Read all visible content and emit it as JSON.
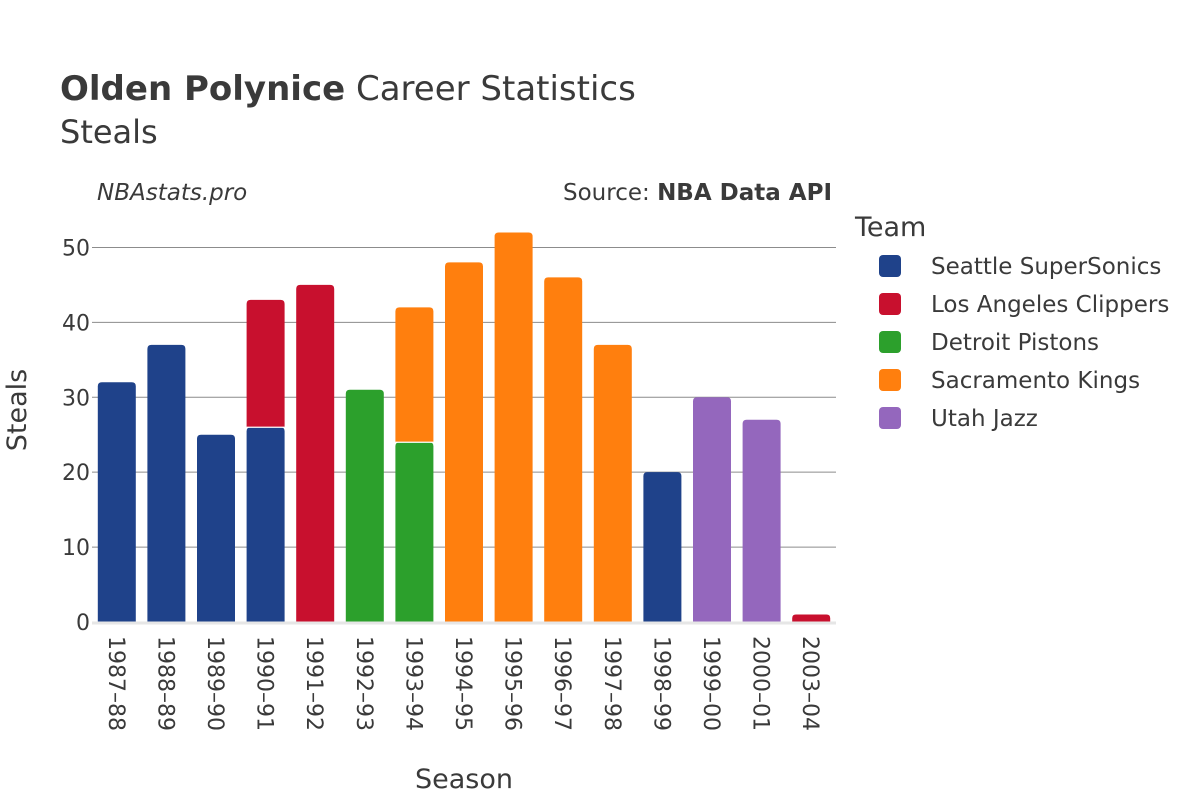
{
  "chart_data": {
    "type": "bar",
    "stacked": true,
    "title_bold": "Olden Polynice",
    "title_rest": " Career Statistics",
    "subtitle": "Steals",
    "watermark": "NBAstats.pro",
    "source_prefix": "Source: ",
    "source_name": "NBA Data API",
    "xlabel": "Season",
    "ylabel": "Steals",
    "ylim": [
      0,
      55
    ],
    "yticks": [
      0,
      10,
      20,
      30,
      40,
      50
    ],
    "grid": true,
    "legend": {
      "title": "Team",
      "placement": "right"
    },
    "categories": [
      "1987–88",
      "1988–89",
      "1989–90",
      "1990–91",
      "1991–92",
      "1992–93",
      "1993–94",
      "1994–95",
      "1995–96",
      "1996–97",
      "1997–98",
      "1998–99",
      "1999–00",
      "2000–01",
      "2003–04"
    ],
    "series": [
      {
        "name": "Seattle SuperSonics",
        "color": "#1f428a",
        "values": [
          32,
          37,
          25,
          26,
          0,
          0,
          0,
          0,
          0,
          0,
          0,
          20,
          0,
          0,
          0
        ]
      },
      {
        "name": "Los Angeles Clippers",
        "color": "#c8102e",
        "values": [
          0,
          0,
          0,
          17,
          45,
          0,
          0,
          0,
          0,
          0,
          0,
          0,
          0,
          0,
          1
        ]
      },
      {
        "name": "Detroit Pistons",
        "color": "#2ca02c",
        "values": [
          0,
          0,
          0,
          0,
          0,
          31,
          24,
          0,
          0,
          0,
          0,
          0,
          0,
          0,
          0
        ]
      },
      {
        "name": "Sacramento Kings",
        "color": "#ff7f0e",
        "values": [
          0,
          0,
          0,
          0,
          0,
          0,
          18,
          48,
          52,
          46,
          37,
          0,
          0,
          0,
          0
        ]
      },
      {
        "name": "Utah Jazz",
        "color": "#9467bd",
        "values": [
          0,
          0,
          0,
          0,
          0,
          0,
          0,
          0,
          0,
          0,
          0,
          0,
          30,
          27,
          0
        ]
      }
    ]
  }
}
